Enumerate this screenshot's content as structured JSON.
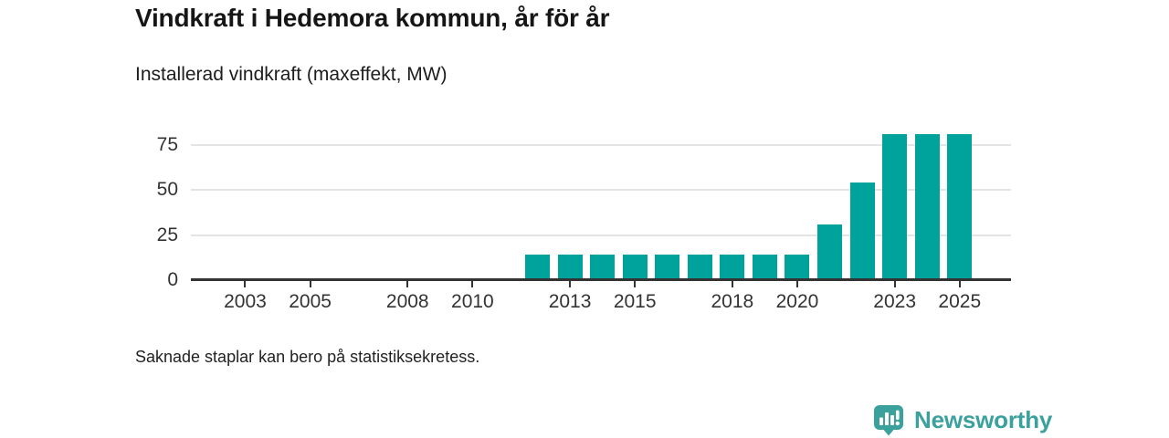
{
  "header": {
    "title": "Vindkraft i Hedemora kommun, år för år",
    "subtitle": "Installerad vindkraft (maxeffekt, MW)"
  },
  "chart_data": {
    "type": "bar",
    "title": "Vindkraft i Hedemora kommun, år för år",
    "subtitle": "Installerad vindkraft (maxeffekt, MW)",
    "unit": "MW",
    "categories": [
      2012,
      2013,
      2014,
      2015,
      2016,
      2017,
      2018,
      2019,
      2020,
      2021,
      2022,
      2023,
      2024,
      2025
    ],
    "values": [
      14,
      14,
      14,
      14,
      14,
      14,
      14,
      14,
      14,
      31,
      54,
      81,
      81,
      81
    ],
    "x_domain": [
      2002,
      2026
    ],
    "x_ticks": [
      2003,
      2005,
      2008,
      2010,
      2013,
      2015,
      2018,
      2020,
      2023,
      2025
    ],
    "y_ticks": [
      0,
      25,
      50,
      75
    ],
    "ylim": [
      0,
      85
    ],
    "grid": true,
    "legend": "none",
    "bar_color": "#00a39c",
    "axis_color": "#333333",
    "grid_color": "#e4e4e4"
  },
  "footnote": "Saknade staplar kan bero på statistiksekretess.",
  "branding": {
    "name": "Newsworthy",
    "color": "#3aa19c"
  }
}
